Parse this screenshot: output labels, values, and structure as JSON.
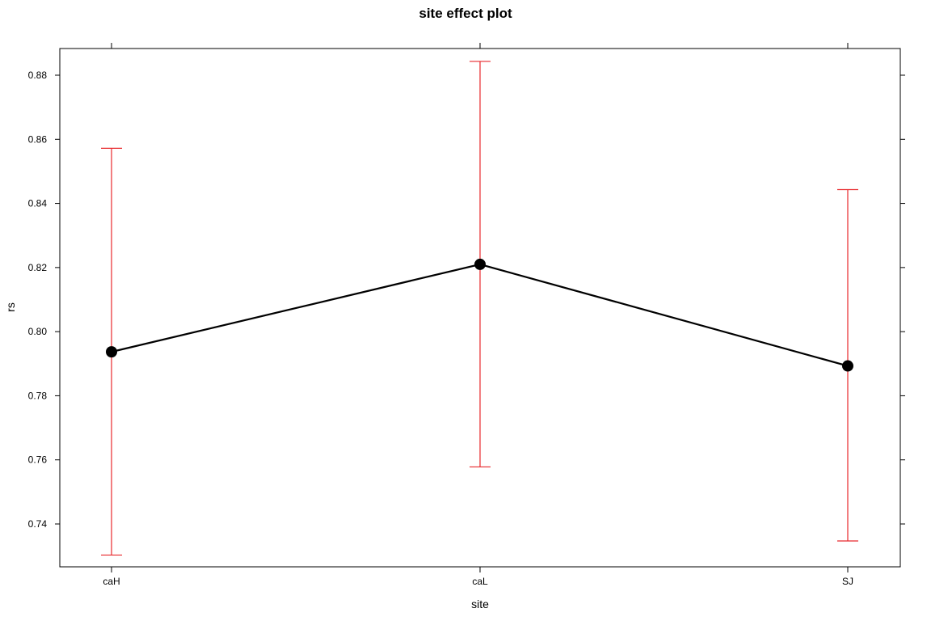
{
  "chart_data": {
    "type": "line",
    "title": "site effect plot",
    "xlabel": "site",
    "ylabel": "rs",
    "categories": [
      "caH",
      "caL",
      "SJ"
    ],
    "series": [
      {
        "values": [
          0.7937,
          0.821,
          0.7893
        ],
        "lower": [
          0.7303,
          0.7578,
          0.7347
        ],
        "upper": [
          0.8572,
          0.8843,
          0.8443
        ]
      }
    ],
    "ylim": [
      0.7265,
      0.8885
    ],
    "yticks": [
      0.74,
      0.76,
      0.78,
      0.8,
      0.82,
      0.84,
      0.86,
      0.88
    ],
    "ytick_labels": [
      "0.74",
      "0.76",
      "0.78",
      "0.80",
      "0.82",
      "0.84",
      "0.86",
      "0.88"
    ],
    "grid": false,
    "colors": {
      "line": "#000000",
      "points": "#000000",
      "error_bars": "#e8292d",
      "frame": "#000000"
    }
  }
}
